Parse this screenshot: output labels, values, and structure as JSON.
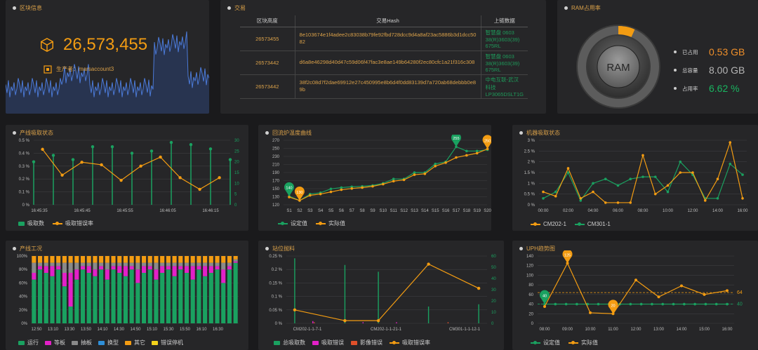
{
  "block": {
    "title": "区块信息",
    "number": "26,573,455",
    "producer": "生产者：marsaccount3"
  },
  "transactions": {
    "title": "交易",
    "headers": [
      "区块高度",
      "交易Hash",
      "上链数据"
    ],
    "rows": [
      {
        "height": "26573455",
        "hash": "8e103674e1f4adee2c83038b79fe92fbd728dcc9d4a8af23ac5886b3d1dcc5082",
        "data": "智慧盘 0603 38(R)3603(39) 675RL"
      },
      {
        "height": "26573442",
        "hash": "d6a8e46298d40d47c59d06f47fac3e8ae149b64280f2ec80cfc1a21f316c308",
        "data": "智慧盘 0603 38(R)3603(39) 675RL"
      },
      {
        "height": "26573442",
        "hash": "38f2c08d7f2dae69912e27c450995e8b6d4f0dd83139d7a720ab68debbb0e89b",
        "data": "中电互联-武汉科技 LP3065DSLT1G"
      }
    ]
  },
  "ram": {
    "title": "RAM占用率",
    "center": "RAM",
    "used_fraction": 0.0662,
    "stats": [
      {
        "label": "已占用",
        "value": "0.53 GB",
        "color": "#ef8f2a"
      },
      {
        "label": "总容量",
        "value": "8.00 GB",
        "color": "#b5b5b5"
      },
      {
        "label": "占用率",
        "value": "6.62 %",
        "color": "#19b560"
      }
    ]
  },
  "colors": {
    "orange": "#f39c12",
    "green": "#1aa160",
    "accent": "#d9a049"
  },
  "charts": [
    {
      "panel_title": "产线吸取状态",
      "legend": [
        "吸取数",
        "吸取错误率"
      ],
      "chart_data": {
        "type": "bar+line",
        "categories": [
          "16:45:30",
          "16:45:35",
          "16:45:40",
          "16:45:45",
          "16:45:50",
          "16:45:55",
          "16:46:00",
          "16:46:05",
          "16:46:10",
          "16:46:15",
          "16:46:20",
          "16:46:25"
        ],
        "x_tick_labels": [
          "16:45:35",
          "16:45:45",
          "16:45:55",
          "16:46:05",
          "16:46:15"
        ],
        "bars": {
          "name": "吸取数",
          "values": [
            20,
            23,
            21,
            27,
            27,
            24,
            25,
            29,
            28,
            26,
            21,
            0
          ]
        },
        "line": {
          "name": "吸取错误率",
          "values": [
            0.43,
            0.23,
            0.33,
            0.31,
            0.19,
            0.3,
            0.37,
            0.21,
            0.12,
            0.21,
            0,
            0
          ]
        },
        "n": 11,
        "y_left": {
          "ticks": [
            "0 %",
            "0.1 %",
            "0.2 %",
            "0.3 %",
            "0.4 %",
            "0.5 %"
          ],
          "max": 0.5
        },
        "y_right": {
          "ticks": [
            "0",
            "5",
            "10",
            "15",
            "20",
            "25",
            "30"
          ],
          "max": 30
        }
      }
    },
    {
      "panel_title": "回流炉温度曲线",
      "legend": [
        "设定值",
        "实际值"
      ],
      "chart_data": {
        "type": "line",
        "categories": [
          "S1",
          "S2",
          "S3",
          "S4",
          "S5",
          "S6",
          "S7",
          "S8",
          "S9",
          "S10",
          "S11",
          "S12",
          "S13",
          "S14",
          "S15",
          "S16",
          "S17",
          "S18",
          "S19",
          "S20"
        ],
        "series": [
          {
            "name": "设定值",
            "values": [
              140,
              130,
              145,
              148,
              157,
              160,
              162,
              163,
              165,
              170,
              180,
              180,
              195,
              195,
              215,
              220,
              255,
              245,
              245,
              248
            ]
          },
          {
            "name": "实际值",
            "values": [
              138,
              130,
              142,
              145,
              150,
              155,
              158,
              160,
              163,
              168,
              175,
              178,
              190,
              192,
              210,
              218,
              230,
              235,
              240,
              250
            ]
          }
        ],
        "markers": [
          {
            "series": 0,
            "index": 0,
            "label": "140"
          },
          {
            "series": 1,
            "index": 1,
            "label": "130"
          },
          {
            "series": 0,
            "index": 16,
            "label": "255"
          },
          {
            "series": 1,
            "index": 19,
            "label": "250"
          }
        ],
        "y_ticks": [
          "120",
          "130",
          "150",
          "170",
          "190",
          "210",
          "230",
          "250",
          "270"
        ],
        "ylim": [
          120,
          270
        ]
      }
    },
    {
      "panel_title": "机器吸取状态",
      "legend": [
        "CM202-1",
        "CM301-1"
      ],
      "chart_data": {
        "type": "line",
        "x_tick_labels": [
          "00:00",
          "02:00",
          "04:00",
          "06:00",
          "08:00",
          "10:00",
          "12:00",
          "14:00",
          "16:00"
        ],
        "series": [
          {
            "name": "CM202-1",
            "values": [
              0.6,
              0.4,
              1.7,
              0.3,
              0.6,
              0.1,
              0.1,
              0.1,
              2.3,
              0.5,
              0.9,
              1.5,
              1.5,
              0.2,
              1.2,
              2.9,
              0.3
            ]
          },
          {
            "name": "CM301-1",
            "values": [
              0.3,
              0.6,
              1.5,
              0.2,
              1.0,
              1.2,
              0.9,
              1.2,
              1.3,
              1.3,
              0.6,
              2.0,
              1.4,
              0.3,
              0.3,
              1.9,
              1.4
            ]
          }
        ],
        "y_ticks": [
          "0 %",
          "0.5 %",
          "1 %",
          "1.5 %",
          "2 %",
          "2.5 %",
          "3 %"
        ],
        "ylim": [
          0,
          3
        ]
      }
    },
    {
      "panel_title": "产线工况",
      "legend": [
        "运行",
        "等板",
        "抽板",
        "换型",
        "其它",
        "错误停机"
      ],
      "chart_data": {
        "type": "stacked-bar",
        "x_tick_labels": [
          "12:50",
          "13:10",
          "13:30",
          "13:50",
          "14:10",
          "14:30",
          "14:50",
          "15:10",
          "15:30",
          "15:50",
          "16:10",
          "16:30"
        ],
        "series_colors": [
          "#1aa160",
          "#e320c8",
          "#8a8a8a",
          "#2f8fd8",
          "#f39c12",
          "#f2d21b"
        ],
        "bars": [
          [
            65,
            10,
            15,
            0,
            10,
            0
          ],
          [
            80,
            5,
            5,
            0,
            10,
            0
          ],
          [
            75,
            10,
            5,
            0,
            10,
            0
          ],
          [
            70,
            15,
            5,
            0,
            10,
            0
          ],
          [
            80,
            5,
            5,
            0,
            10,
            0
          ],
          [
            55,
            20,
            15,
            0,
            10,
            0
          ],
          [
            25,
            50,
            15,
            0,
            10,
            0
          ],
          [
            65,
            15,
            10,
            0,
            10,
            0
          ],
          [
            80,
            5,
            5,
            0,
            10,
            0
          ],
          [
            75,
            10,
            5,
            0,
            10,
            0
          ],
          [
            70,
            10,
            10,
            0,
            10,
            0
          ],
          [
            80,
            5,
            5,
            0,
            10,
            0
          ],
          [
            65,
            15,
            10,
            0,
            10,
            0
          ],
          [
            80,
            5,
            5,
            0,
            10,
            0
          ],
          [
            75,
            10,
            5,
            0,
            10,
            0
          ],
          [
            70,
            15,
            5,
            0,
            10,
            0
          ],
          [
            80,
            5,
            5,
            0,
            10,
            0
          ],
          [
            60,
            20,
            10,
            0,
            10,
            0
          ],
          [
            75,
            10,
            5,
            0,
            10,
            0
          ],
          [
            80,
            5,
            5,
            0,
            10,
            0
          ],
          [
            65,
            15,
            10,
            0,
            10,
            0
          ],
          [
            75,
            10,
            5,
            0,
            10,
            0
          ],
          [
            80,
            5,
            5,
            0,
            10,
            0
          ],
          [
            70,
            15,
            5,
            0,
            10,
            0
          ],
          [
            80,
            5,
            5,
            0,
            10,
            0
          ],
          [
            75,
            10,
            5,
            0,
            10,
            0
          ],
          [
            65,
            20,
            5,
            0,
            10,
            0
          ],
          [
            80,
            5,
            5,
            0,
            10,
            0
          ],
          [
            70,
            15,
            5,
            0,
            10,
            0
          ],
          [
            75,
            10,
            5,
            0,
            10,
            0
          ],
          [
            80,
            5,
            5,
            0,
            10,
            0
          ],
          [
            60,
            20,
            10,
            0,
            10,
            0
          ],
          [
            80,
            5,
            5,
            0,
            10,
            0
          ],
          [
            90,
            2,
            3,
            0,
            5,
            0
          ]
        ],
        "y_ticks": [
          "0%",
          "20%",
          "40%",
          "60%",
          "80%",
          "100%"
        ]
      }
    },
    {
      "panel_title": "站位抛料",
      "legend": [
        "总吸取数",
        "吸取错误",
        "影像错误",
        "吸取错误率"
      ],
      "chart_data": {
        "type": "bar+line",
        "x_tick_labels": [
          "CM202-1-1-7-1",
          "CM202-1-1-21-1",
          "CM301-1-1-12-1"
        ],
        "bar_groups": [
          {
            "values": [
              58,
              0,
              0
            ]
          },
          {
            "values": [
              0,
              2,
              1
            ]
          },
          {
            "values": [
              0,
              0,
              0
            ]
          },
          {
            "values": [
              52,
              0,
              0
            ]
          },
          {
            "values": [
              0,
              1,
              0
            ]
          },
          {
            "values": [
              46,
              0,
              0
            ]
          },
          {
            "values": [
              0,
              1,
              0
            ]
          },
          {
            "values": [
              0,
              0,
              0
            ]
          },
          {
            "values": [
              15,
              0,
              0
            ]
          },
          {
            "values": [
              0,
              0,
              1
            ]
          },
          {
            "values": [
              0,
              0,
              0
            ]
          },
          {
            "values": [
              17,
              0,
              0
            ]
          }
        ],
        "line": {
          "name": "吸取错误率",
          "points": [
            [
              0,
              0.05
            ],
            [
              3,
              0.01
            ],
            [
              5,
              0.01
            ],
            [
              8,
              0.22
            ],
            [
              11,
              0.13
            ]
          ]
        },
        "y_left": {
          "ticks": [
            "0 %",
            "0.05 %",
            "0.1 %",
            "0.15 %",
            "0.2 %",
            "0.25 %"
          ],
          "max": 0.25
        },
        "y_right": {
          "ticks": [
            "0",
            "10",
            "20",
            "30",
            "40",
            "50",
            "60"
          ],
          "max": 60
        }
      }
    },
    {
      "panel_title": "UPH趋势图",
      "legend": [
        "设定值",
        "实际值"
      ],
      "chart_data": {
        "type": "line",
        "x_tick_labels": [
          "08:00",
          "09:00",
          "10:00",
          "11:00",
          "12:00",
          "13:00",
          "14:00",
          "15:00",
          "16:00"
        ],
        "series": [
          {
            "name": "设定值",
            "values": [
              40,
              40,
              40,
              40,
              40,
              40,
              40,
              40,
              40,
              40,
              40,
              40,
              40,
              40,
              40,
              40,
              40,
              40
            ]
          },
          {
            "name": "实际值",
            "values": [
              35,
              125,
              22,
              20,
              90,
              55,
              78,
              60,
              68
            ]
          }
        ],
        "markers": [
          {
            "series": 0,
            "index": 0,
            "label": "40"
          },
          {
            "series": 1,
            "index": 1,
            "label": "125"
          },
          {
            "series": 1,
            "index": 3,
            "label": "20"
          }
        ],
        "ref_lines": [
          {
            "value": 64,
            "label": "64",
            "color": "#f39c12"
          },
          {
            "value": 40,
            "label": "40",
            "color": "#1aa160"
          }
        ],
        "y_ticks": [
          "0",
          "20",
          "40",
          "60",
          "80",
          "100",
          "120",
          "140"
        ],
        "ylim": [
          0,
          140
        ]
      }
    }
  ]
}
